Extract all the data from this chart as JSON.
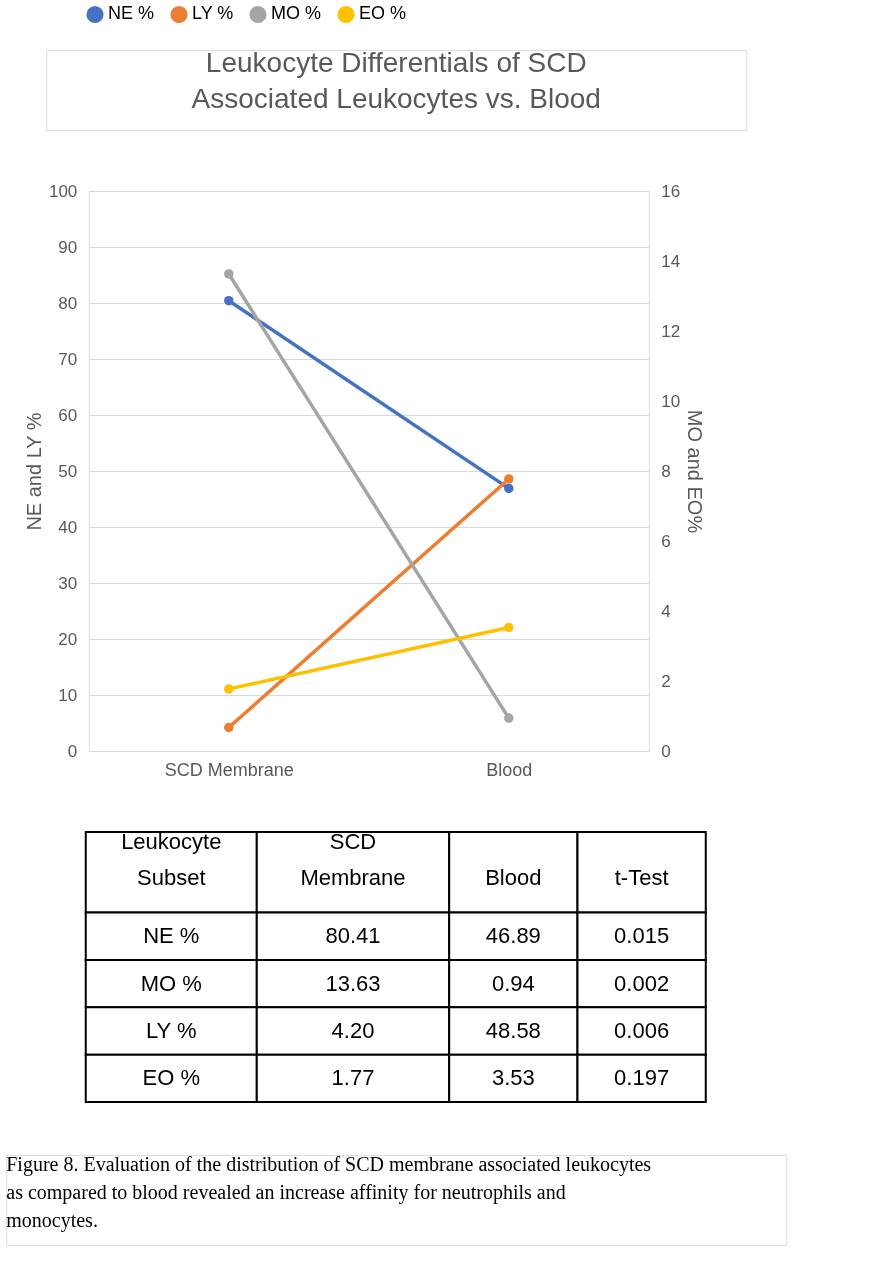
{
  "chart_data": {
    "type": "line",
    "title": "Leukocyte Differentials of SCD Associated Leukocytes vs. Blood",
    "ylabel": "NE and LY %",
    "y2label": "MO and EO%",
    "categories": [
      "SCD Membrane",
      "Blood"
    ],
    "series": [
      {
        "name": "NE %",
        "color": "#4472c4",
        "values": [
          80.41,
          46.89
        ],
        "value_labels": [
          "80.41",
          "46.89"
        ]
      },
      {
        "name": "MO %",
        "color": "#a5a5a5",
        "values": [
          13.63,
          0.94
        ],
        "value_labels": [
          "13.63",
          "0.94"
        ],
        "axis": "y2"
      },
      {
        "name": "LY %",
        "color": "#ed7d31",
        "values": [
          4.2,
          48.58
        ],
        "value_labels": [
          "4.20",
          "48.58"
        ]
      },
      {
        "name": "EO %",
        "color": "#ffc000",
        "values": [
          1.77,
          3.53
        ],
        "value_labels": [
          "1.77",
          "3.53"
        ],
        "axis": "y2"
      }
    ],
    "ylim": [
      0,
      100
    ],
    "yticks": [
      0,
      10,
      20,
      30,
      40,
      50,
      60,
      70,
      80,
      90,
      100
    ],
    "y2lim": [
      0,
      16
    ],
    "y2ticks": [
      0,
      2,
      4,
      6,
      8,
      10,
      12,
      14,
      16
    ],
    "grid": "y",
    "legend": "top",
    "marker": "circle",
    "line_style": "solid",
    "annotations": [
      "Leukocyte Subset",
      "t-Test",
      "0.015",
      "0.002",
      "0.006",
      "0.197",
      "Figure 8. Evaluation of the distribution of SCD membrane associated leukocytes as compared to blood revealed an increase affinity for neutrophils and monocytes."
    ]
  }
}
